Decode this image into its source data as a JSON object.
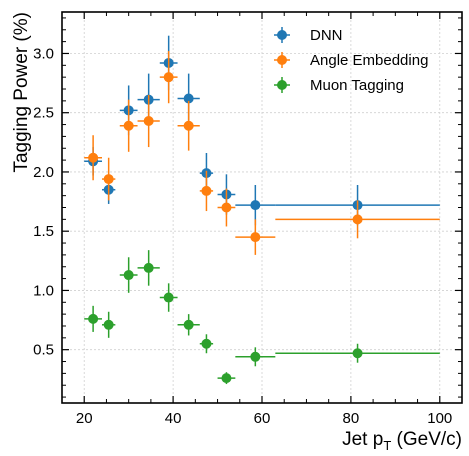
{
  "chart_data": {
    "type": "scatter",
    "xlabel": "Jet p",
    "xlabel_sub": "T",
    "xlabel_unit": " (GeV/c)",
    "ylabel": "Tagging Power (%)",
    "xlim": [
      15,
      105
    ],
    "ylim": [
      0.05,
      3.35
    ],
    "x_ticks": [
      "20",
      "40",
      "60",
      "80",
      "100"
    ],
    "y_ticks": [
      "0.5",
      "1.0",
      "1.5",
      "2.0",
      "2.5",
      "3.0"
    ],
    "x_tick_values": [
      20,
      40,
      60,
      80,
      100
    ],
    "y_tick_values": [
      0.5,
      1.0,
      1.5,
      2.0,
      2.5,
      3.0
    ],
    "grid": true,
    "legend_position": "top-right",
    "series": [
      {
        "name": "DNN",
        "color": "#1f77b4",
        "points": [
          {
            "x": 22,
            "xlo": 20,
            "xhi": 24,
            "y": 2.09,
            "yerr": 0.12
          },
          {
            "x": 25.5,
            "xlo": 24,
            "xhi": 27,
            "y": 1.85,
            "yerr": 0.12
          },
          {
            "x": 30,
            "xlo": 28,
            "xhi": 32,
            "y": 2.52,
            "yerr": 0.21
          },
          {
            "x": 34.5,
            "xlo": 32,
            "xhi": 37,
            "y": 2.61,
            "yerr": 0.22
          },
          {
            "x": 39,
            "xlo": 37,
            "xhi": 41,
            "y": 2.92,
            "yerr": 0.23
          },
          {
            "x": 43.5,
            "xlo": 41,
            "xhi": 46,
            "y": 2.62,
            "yerr": 0.21
          },
          {
            "x": 47.5,
            "xlo": 46,
            "xhi": 49,
            "y": 1.99,
            "yerr": 0.17
          },
          {
            "x": 52,
            "xlo": 50,
            "xhi": 54,
            "y": 1.81,
            "yerr": 0.17
          },
          {
            "x": 58.5,
            "xlo": 54,
            "xhi": 63,
            "y": 1.72,
            "yerr": 0.17
          },
          {
            "x": 81.5,
            "xlo": 63,
            "xhi": 100,
            "y": 1.72,
            "yerr": 0.17
          }
        ]
      },
      {
        "name": "Angle Embedding",
        "color": "#ff7f0e",
        "points": [
          {
            "x": 22,
            "xlo": 20,
            "xhi": 24,
            "y": 2.12,
            "yerr": 0.19
          },
          {
            "x": 25.5,
            "xlo": 24,
            "xhi": 27,
            "y": 1.94,
            "yerr": 0.18
          },
          {
            "x": 30,
            "xlo": 28,
            "xhi": 32,
            "y": 2.39,
            "yerr": 0.22
          },
          {
            "x": 34.5,
            "xlo": 32,
            "xhi": 37,
            "y": 2.43,
            "yerr": 0.22
          },
          {
            "x": 39,
            "xlo": 37,
            "xhi": 41,
            "y": 2.8,
            "yerr": 0.22
          },
          {
            "x": 43.5,
            "xlo": 41,
            "xhi": 46,
            "y": 2.39,
            "yerr": 0.21
          },
          {
            "x": 47.5,
            "xlo": 46,
            "xhi": 49,
            "y": 1.84,
            "yerr": 0.17
          },
          {
            "x": 52,
            "xlo": 50,
            "xhi": 54,
            "y": 1.7,
            "yerr": 0.16
          },
          {
            "x": 58.5,
            "xlo": 54,
            "xhi": 63,
            "y": 1.45,
            "yerr": 0.15
          },
          {
            "x": 81.5,
            "xlo": 63,
            "xhi": 100,
            "y": 1.6,
            "yerr": 0.16
          }
        ]
      },
      {
        "name": "Muon Tagging",
        "color": "#2ca02c",
        "points": [
          {
            "x": 22,
            "xlo": 20,
            "xhi": 24,
            "y": 0.76,
            "yerr": 0.11
          },
          {
            "x": 25.5,
            "xlo": 24,
            "xhi": 27,
            "y": 0.71,
            "yerr": 0.11
          },
          {
            "x": 30,
            "xlo": 28,
            "xhi": 32,
            "y": 1.13,
            "yerr": 0.15
          },
          {
            "x": 34.5,
            "xlo": 32,
            "xhi": 37,
            "y": 1.19,
            "yerr": 0.15
          },
          {
            "x": 39,
            "xlo": 37,
            "xhi": 41,
            "y": 0.94,
            "yerr": 0.12
          },
          {
            "x": 43.5,
            "xlo": 41,
            "xhi": 46,
            "y": 0.71,
            "yerr": 0.09
          },
          {
            "x": 47.5,
            "xlo": 46,
            "xhi": 49,
            "y": 0.55,
            "yerr": 0.08
          },
          {
            "x": 52,
            "xlo": 50,
            "xhi": 54,
            "y": 0.26,
            "yerr": 0.05
          },
          {
            "x": 58.5,
            "xlo": 54,
            "xhi": 63,
            "y": 0.44,
            "yerr": 0.08
          },
          {
            "x": 81.5,
            "xlo": 63,
            "xhi": 100,
            "y": 0.47,
            "yerr": 0.08
          }
        ]
      }
    ]
  }
}
